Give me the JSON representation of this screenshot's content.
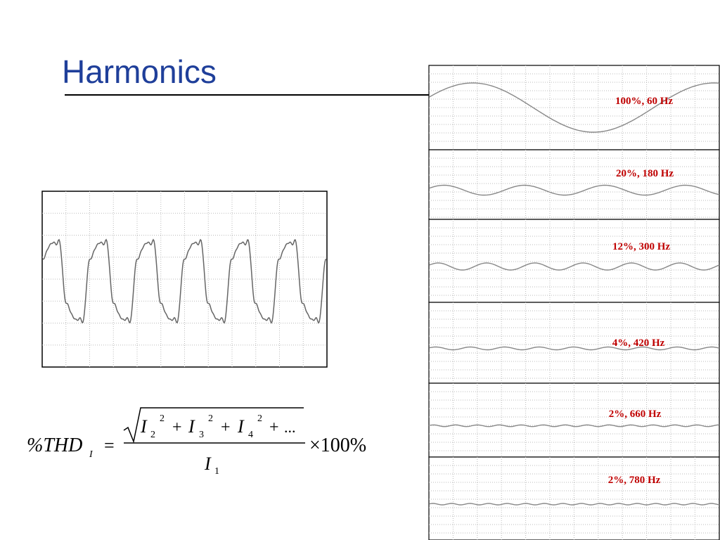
{
  "header": {
    "title": "Harmonics"
  },
  "panels": [
    {
      "label": "100%, 60 Hz"
    },
    {
      "label": "20%, 180 Hz"
    },
    {
      "label": "12%, 300 Hz"
    },
    {
      "label": "4%, 420 Hz"
    },
    {
      "label": "2%, 660 Hz"
    },
    {
      "label": "2%, 780 Hz"
    }
  ],
  "formula": {
    "lhs": "%THD",
    "lhs_sub": "I",
    "equals": "=",
    "terms": [
      {
        "base": "I",
        "sub": "2",
        "sup": "2"
      },
      {
        "base": "I",
        "sub": "3",
        "sup": "2"
      },
      {
        "base": "I",
        "sub": "4",
        "sup": "2"
      }
    ],
    "plus": "+",
    "ellipsis": "...",
    "times": "×100%",
    "den": "I",
    "den_sub": "1"
  }
}
